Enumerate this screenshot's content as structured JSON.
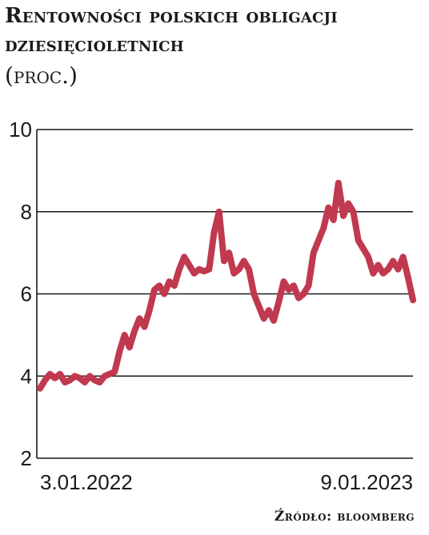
{
  "chart_data": {
    "type": "line",
    "title": "Rentowności polskich obligacji dziesięcioletnich",
    "subtitle": "(proc.)",
    "source": "Źródło: bloomberg",
    "xlabel": "",
    "ylabel": "",
    "y_ticks": [
      "2",
      "4",
      "6",
      "8",
      "10"
    ],
    "ylim": [
      2,
      10
    ],
    "x_tick_labels": [
      "3.01.2022",
      "9.01.2023"
    ],
    "grid": true,
    "line_color": "#c0394f",
    "series": [
      {
        "values": [
          3.7,
          3.9,
          4.05,
          3.95,
          4.05,
          3.85,
          3.9,
          4.0,
          3.95,
          3.85,
          4.0,
          3.9,
          3.85,
          4.0,
          4.05,
          4.1,
          4.6,
          5.0,
          4.7,
          5.1,
          5.4,
          5.2,
          5.6,
          6.1,
          6.2,
          6.0,
          6.3,
          6.2,
          6.6,
          6.9,
          6.7,
          6.5,
          6.6,
          6.55,
          6.6,
          7.5,
          8.0,
          6.8,
          7.0,
          6.5,
          6.6,
          6.8,
          6.6,
          6.0,
          5.7,
          5.4,
          5.6,
          5.35,
          5.8,
          6.3,
          6.1,
          6.2,
          5.9,
          6.0,
          6.2,
          7.0,
          7.3,
          7.6,
          8.1,
          7.8,
          8.7,
          7.9,
          8.2,
          8.0,
          7.3,
          7.1,
          6.9,
          6.5,
          6.7,
          6.5,
          6.6,
          6.8,
          6.6,
          6.9,
          6.4,
          5.85
        ]
      }
    ]
  }
}
